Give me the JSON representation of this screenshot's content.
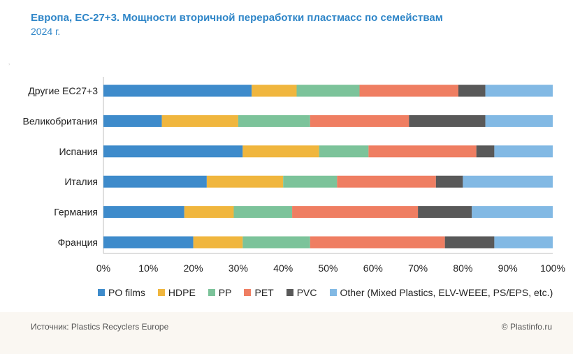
{
  "header": {
    "title": "Европа, ЕС-27+3. Мощности вторичной переработки пластмасс по семействам",
    "subtitle": "2024 г."
  },
  "footer": {
    "source": "Источник:  Plastics Recyclers Europe",
    "copyright": "© Plastinfo.ru"
  },
  "chart_data": {
    "type": "bar",
    "orientation": "horizontal",
    "stacked": true,
    "percent": true,
    "categories": [
      "Другие ЕС27+3",
      "Великобритания",
      "Испания",
      "Италия",
      "Германия",
      "Франция"
    ],
    "series": [
      {
        "name": "PO films",
        "color": "#3e8bcb",
        "values": [
          33,
          13,
          31,
          23,
          18,
          20
        ]
      },
      {
        "name": "HDPE",
        "color": "#f0b63e",
        "values": [
          10,
          17,
          17,
          17,
          11,
          11
        ]
      },
      {
        "name": "PP",
        "color": "#7cc39a",
        "values": [
          14,
          16,
          11,
          12,
          13,
          15
        ]
      },
      {
        "name": "PET",
        "color": "#ef7e62",
        "values": [
          22,
          22,
          24,
          22,
          28,
          30
        ]
      },
      {
        "name": "PVC",
        "color": "#595959",
        "values": [
          6,
          17,
          4,
          6,
          12,
          11
        ]
      },
      {
        "name": "Other (Mixed Plastics, ELV-WEEE, PS/EPS, etc.)",
        "color": "#82b9e4",
        "values": [
          15,
          15,
          13,
          20,
          18,
          13
        ]
      }
    ],
    "xlim": [
      0,
      100
    ],
    "xticks": [
      "0%",
      "10%",
      "20%",
      "30%",
      "40%",
      "50%",
      "60%",
      "70%",
      "80%",
      "90%",
      "100%"
    ],
    "grid": false,
    "legend_position": "bottom"
  }
}
